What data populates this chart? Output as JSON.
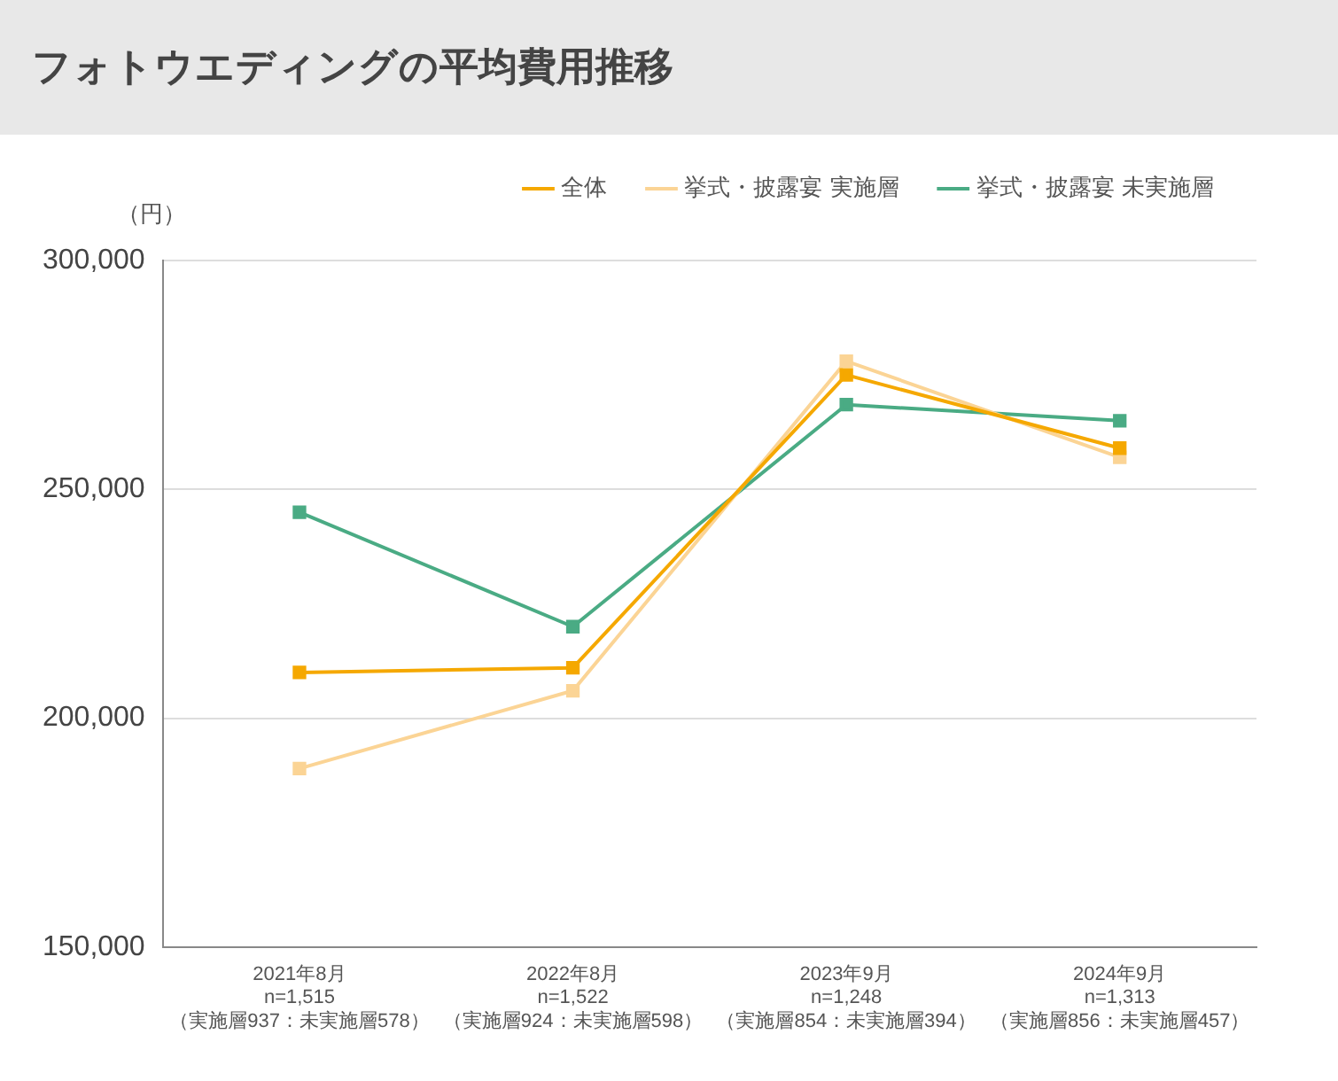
{
  "chart_data": {
    "type": "line",
    "title": "フォトウエディングの平均費用推移",
    "ylabel": "（円）",
    "categories": [
      "2021年8月\nn=1,515\n（実施層937：未実施層578）",
      "2022年8月\nn=1,522\n（実施層924：未実施層598）",
      "2023年9月\nn=1,248\n（実施層854：未実施層394）",
      "2024年9月\nn=1,313\n（実施層856：未実施層457）"
    ],
    "series": [
      {
        "name": "全体",
        "color": "#f5a800",
        "values": [
          210000,
          211000,
          275000,
          259000
        ]
      },
      {
        "name": "挙式・披露宴 実施層",
        "color": "#fbd495",
        "values": [
          189000,
          206000,
          278000,
          257000
        ]
      },
      {
        "name": "挙式・披露宴 未実施層",
        "color": "#4aab84",
        "values": [
          245000,
          220000,
          268500,
          265000
        ]
      }
    ],
    "ylim": [
      150000,
      300000
    ],
    "yticks": [
      {
        "value": 150000,
        "label": "150,000"
      },
      {
        "value": 200000,
        "label": "200,000"
      },
      {
        "value": 250000,
        "label": "250,000"
      },
      {
        "value": 300000,
        "label": "300,000"
      }
    ],
    "grid": "y",
    "legend": "top",
    "marker": "square",
    "line_style": "solid"
  }
}
